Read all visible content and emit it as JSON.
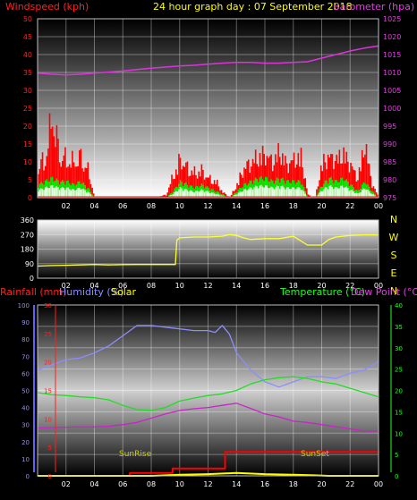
{
  "colors": {
    "red": "#ff2020",
    "green": "#20ff20",
    "yellow": "#ffff00",
    "magenta": "#e040e0",
    "blue": "#8080ff",
    "wind_gust": "#ff0000",
    "wind_avg": "#00ee00",
    "wind_white": "#e0ffe0",
    "pressure": "#dd33dd",
    "winddir": "#ffff30",
    "humidity": "#8c8cff",
    "temperature": "#22dd22",
    "dewpoint": "#cc22cc",
    "rain": "#ff0000",
    "solar": "#ffff00",
    "sun_text": "#cccc00"
  },
  "chart_data": [
    {
      "type": "area",
      "title": "24 hour graph day : 07 September 2018",
      "left_axis_label": "Windspeed (kph)",
      "right_axis_label": "Barometer (hpa)",
      "left_ticks": [
        "0",
        "5",
        "10",
        "15",
        "20",
        "25",
        "30",
        "35",
        "40",
        "45",
        "50"
      ],
      "right_ticks": [
        "975",
        "980",
        "985",
        "990",
        "995",
        "1000",
        "1005",
        "1010",
        "1015",
        "1020",
        "1025"
      ],
      "x_ticks": [
        "02",
        "04",
        "06",
        "08",
        "10",
        "12",
        "14",
        "16",
        "18",
        "20",
        "22",
        "00"
      ],
      "ylim_left": [
        0,
        50
      ],
      "ylim_right": [
        975,
        1025
      ],
      "xlim": [
        0,
        24
      ],
      "series": [
        {
          "name": "Barometer (hpa)",
          "x": [
            0,
            1,
            2,
            3,
            4,
            5,
            6,
            7,
            8,
            9,
            10,
            11,
            12,
            13,
            14,
            15,
            16,
            17,
            18,
            19,
            20,
            21,
            22,
            23,
            24
          ],
          "values": [
            1009.8,
            1009.5,
            1009.3,
            1009.5,
            1009.8,
            1010.1,
            1010.4,
            1010.8,
            1011.2,
            1011.5,
            1011.8,
            1012.0,
            1012.3,
            1012.6,
            1012.8,
            1012.8,
            1012.6,
            1012.6,
            1012.8,
            1013.0,
            1014.0,
            1015.0,
            1016.0,
            1016.8,
            1017.4
          ]
        },
        {
          "name": "Windspeed (kph)",
          "x": [
            0,
            0.5,
            1,
            1.5,
            2,
            2.5,
            3,
            3.5,
            4,
            4.5,
            5,
            6,
            7,
            8,
            9,
            9.5,
            10,
            10.5,
            11,
            11.5,
            12,
            12.5,
            13,
            13.5,
            14,
            14.5,
            15,
            15.5,
            16,
            16.5,
            17,
            17.5,
            18,
            18.5,
            19,
            19.5,
            20,
            20.5,
            21,
            21.5,
            22,
            22.5,
            23,
            23.5,
            24
          ],
          "values": [
            12,
            14,
            30,
            16,
            14,
            13,
            15,
            10,
            0,
            0,
            0,
            0,
            0,
            0,
            1,
            8,
            14,
            11,
            9,
            10,
            7,
            6,
            2,
            0,
            5,
            11,
            13,
            15,
            16,
            13,
            17,
            12,
            14,
            15,
            1,
            0,
            13,
            15,
            14,
            16,
            12,
            7,
            20,
            5,
            0
          ]
        },
        {
          "name": "Wind avg",
          "x": [
            0,
            0.5,
            1,
            1.5,
            2,
            2.5,
            3,
            3.5,
            4,
            4.5,
            5,
            6,
            7,
            8,
            9,
            9.5,
            10,
            10.5,
            11,
            11.5,
            12,
            12.5,
            13,
            13.5,
            14,
            14.5,
            15,
            15.5,
            16,
            16.5,
            17,
            17.5,
            18,
            18.5,
            19,
            19.5,
            20,
            20.5,
            21,
            21.5,
            22,
            22.5,
            23,
            23.5,
            24
          ],
          "values": [
            4,
            5,
            6,
            5,
            5,
            4,
            5,
            3,
            0,
            0,
            0,
            0,
            0,
            0,
            0,
            2,
            5,
            4,
            3,
            4,
            3,
            2,
            1,
            0,
            2,
            4,
            5,
            6,
            6,
            5,
            6,
            5,
            5,
            5,
            0,
            0,
            4,
            6,
            5,
            6,
            4,
            2,
            5,
            2,
            0
          ]
        }
      ]
    },
    {
      "type": "line",
      "left_ticks": [
        "0",
        "90",
        "180",
        "270",
        "360"
      ],
      "right_labels": [
        "N",
        "W",
        "S",
        "E",
        "N"
      ],
      "x_ticks": [
        "02",
        "04",
        "06",
        "08",
        "10",
        "12",
        "14",
        "16",
        "18",
        "20",
        "22",
        "00"
      ],
      "ylim": [
        0,
        360
      ],
      "xlim": [
        0,
        24
      ],
      "series": [
        {
          "name": "Wind direction",
          "x": [
            0,
            1,
            2,
            3,
            4,
            5,
            6,
            7,
            8,
            9,
            9.7,
            9.8,
            10,
            11,
            12,
            13,
            13.5,
            14,
            14.5,
            15,
            16,
            17,
            18,
            19,
            20,
            20.5,
            21,
            22,
            23,
            24
          ],
          "values": [
            75,
            78,
            80,
            82,
            85,
            82,
            84,
            85,
            85,
            85,
            85,
            235,
            250,
            255,
            255,
            260,
            270,
            265,
            250,
            240,
            245,
            245,
            260,
            205,
            205,
            240,
            255,
            265,
            268,
            268
          ]
        }
      ]
    },
    {
      "type": "line",
      "legend": [
        "Rainfall (mm)",
        "Humidity (%)",
        "Solar",
        "Temperature (°C)",
        "Dew Point (°C)"
      ],
      "far_left_ticks": [
        "0",
        "10",
        "20",
        "30",
        "40",
        "50",
        "60",
        "70",
        "80",
        "90",
        "100"
      ],
      "rain_ticks": [
        "0",
        "5",
        "10",
        "15",
        "20",
        "25",
        "30"
      ],
      "right_ticks": [
        "0",
        "5",
        "10",
        "15",
        "20",
        "25",
        "30",
        "35",
        "40"
      ],
      "x_ticks": [
        "02",
        "04",
        "06",
        "08",
        "10",
        "12",
        "14",
        "16",
        "18",
        "20",
        "22",
        "00"
      ],
      "annotations": [
        "SunRise",
        "SunSet"
      ],
      "xlim": [
        0,
        24
      ],
      "ylim_humidity": [
        0,
        100
      ],
      "ylim_rain": [
        0,
        30
      ],
      "ylim_temp": [
        0,
        40
      ],
      "series": [
        {
          "name": "Humidity (%)",
          "x": [
            0,
            1,
            2,
            3,
            4,
            5,
            6,
            7,
            8,
            9,
            10,
            11,
            12,
            12.5,
            13,
            13.5,
            14,
            15,
            16,
            17,
            18,
            19,
            20,
            21,
            22,
            23,
            24
          ],
          "values": [
            62,
            65,
            68,
            69,
            72,
            76,
            82,
            88,
            88,
            87,
            86,
            85,
            85,
            84,
            88,
            83,
            72,
            62,
            55,
            52,
            55,
            58,
            58,
            57,
            60,
            62,
            67
          ]
        },
        {
          "name": "Temperature (°C)",
          "x": [
            0,
            1,
            2,
            3,
            4,
            5,
            6,
            7,
            8,
            9,
            10,
            11,
            12,
            13,
            14,
            15,
            16,
            17,
            18,
            19,
            20,
            21,
            22,
            23,
            24
          ],
          "values": [
            19.5,
            19,
            18.8,
            18.5,
            18.3,
            17.8,
            16.5,
            15.5,
            15.3,
            16,
            17.5,
            18.2,
            18.8,
            19.2,
            20,
            21.5,
            22.5,
            23,
            23.2,
            22.8,
            22,
            21.5,
            20.5,
            19.5,
            18.5
          ]
        },
        {
          "name": "Dew Point (°C)",
          "x": [
            0,
            1,
            2,
            3,
            4,
            5,
            6,
            7,
            8,
            9,
            10,
            11,
            12,
            13,
            14,
            15,
            16,
            17,
            18,
            19,
            20,
            21,
            22,
            23,
            24
          ],
          "values": [
            11.2,
            11.3,
            11.4,
            11.5,
            11.5,
            11.6,
            12,
            12.5,
            13.5,
            14.5,
            15.3,
            15.7,
            16,
            16.5,
            17,
            15.8,
            14.5,
            13.8,
            12.8,
            12.5,
            12,
            11.5,
            11,
            10.5,
            10.5
          ]
        },
        {
          "name": "Rainfall (mm)",
          "x": [
            0,
            6.5,
            6.5,
            9.5,
            9.5,
            13.2,
            13.2,
            24
          ],
          "values": [
            0,
            0,
            0.5,
            0.5,
            1.3,
            1.3,
            4.2,
            4.2
          ]
        },
        {
          "name": "Solar",
          "x": [
            0,
            6.5,
            8,
            10,
            12,
            14,
            16,
            18,
            19.5,
            20.5,
            24
          ],
          "values": [
            0,
            0,
            0,
            0.2,
            0.3,
            0.5,
            0.3,
            0.2,
            0.1,
            0,
            0
          ]
        }
      ]
    }
  ]
}
